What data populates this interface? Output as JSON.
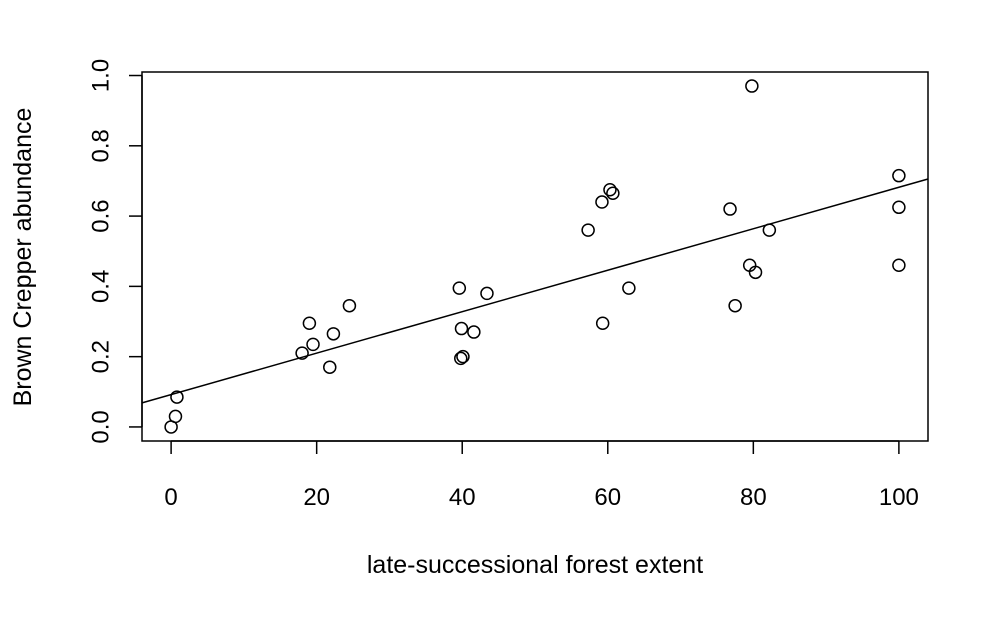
{
  "chart_data": {
    "type": "scatter",
    "title": "",
    "xlabel": "late-successional forest extent",
    "ylabel": "Brown Crepper abundance",
    "xlim": [
      -4,
      104
    ],
    "ylim": [
      -0.04,
      1.01
    ],
    "x_ticks": [
      0,
      20,
      40,
      60,
      80,
      100
    ],
    "y_ticks": [
      0.0,
      0.2,
      0.4,
      0.6,
      0.8,
      1.0
    ],
    "x_tick_labels": [
      "0",
      "20",
      "40",
      "60",
      "80",
      "100"
    ],
    "y_tick_labels": [
      "0.0",
      "0.2",
      "0.4",
      "0.6",
      "0.8",
      "1.0"
    ],
    "grid": false,
    "legend": false,
    "marker": "open-circle",
    "points": [
      {
        "x": 0,
        "y": 0.0
      },
      {
        "x": 0.6,
        "y": 0.03
      },
      {
        "x": 0.8,
        "y": 0.085
      },
      {
        "x": 18.0,
        "y": 0.21
      },
      {
        "x": 19.0,
        "y": 0.295
      },
      {
        "x": 19.5,
        "y": 0.235
      },
      {
        "x": 21.8,
        "y": 0.17
      },
      {
        "x": 22.3,
        "y": 0.265
      },
      {
        "x": 24.5,
        "y": 0.345
      },
      {
        "x": 39.6,
        "y": 0.395
      },
      {
        "x": 39.8,
        "y": 0.195
      },
      {
        "x": 39.9,
        "y": 0.28
      },
      {
        "x": 40.1,
        "y": 0.2
      },
      {
        "x": 41.6,
        "y": 0.27
      },
      {
        "x": 43.4,
        "y": 0.38
      },
      {
        "x": 57.3,
        "y": 0.56
      },
      {
        "x": 59.2,
        "y": 0.64
      },
      {
        "x": 59.3,
        "y": 0.295
      },
      {
        "x": 60.3,
        "y": 0.675
      },
      {
        "x": 60.7,
        "y": 0.665
      },
      {
        "x": 62.9,
        "y": 0.395
      },
      {
        "x": 76.8,
        "y": 0.62
      },
      {
        "x": 77.5,
        "y": 0.345
      },
      {
        "x": 79.5,
        "y": 0.46
      },
      {
        "x": 79.8,
        "y": 0.97
      },
      {
        "x": 80.3,
        "y": 0.44
      },
      {
        "x": 82.2,
        "y": 0.56
      },
      {
        "x": 100,
        "y": 0.715
      },
      {
        "x": 100,
        "y": 0.625
      },
      {
        "x": 100,
        "y": 0.46
      }
    ],
    "fit_line": {
      "intercept": 0.092,
      "slope": 0.0059
    }
  }
}
